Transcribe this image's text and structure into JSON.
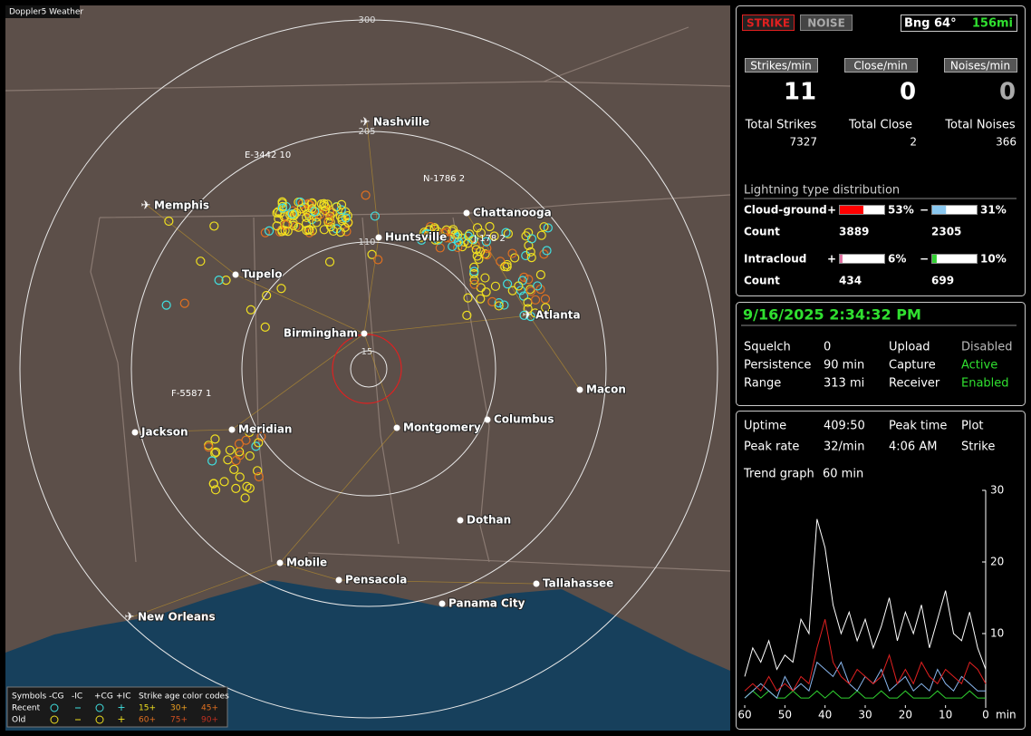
{
  "map": {
    "title": "Doppler5 Weather",
    "range_labels": [
      "300",
      "205",
      "110",
      "15"
    ],
    "cities": [
      "Nashville",
      "Memphis",
      "Chattanooga",
      "Huntsville",
      "Tupelo",
      "Birmingham",
      "Atlanta",
      "Macon",
      "Jackson",
      "Meridian",
      "Montgomery",
      "Columbus",
      "Dothan",
      "Mobile",
      "Pensacola",
      "Panama City",
      "Tallahassee",
      "New Orleans"
    ],
    "strike_labels": [
      "E-3442 10",
      "N-1786 2",
      "J-178 2",
      "F-5587 1"
    ],
    "legend": {
      "symbols": "Symbols",
      "types": [
        "-CG",
        "-IC",
        "+CG",
        "+IC"
      ],
      "age_title": "Strike age color codes",
      "rows": [
        {
          "name": "Recent",
          "ages": [
            "15+",
            "30+",
            "45+"
          ]
        },
        {
          "name": "Old",
          "ages": [
            "60+",
            "75+",
            "90+"
          ]
        }
      ]
    }
  },
  "stats": {
    "modes": [
      "STRIKE",
      "NOISE"
    ],
    "bearing": "Bng 64°",
    "distance": "156mi",
    "rates": [
      {
        "header": "Strikes/min",
        "value": "11",
        "total_label": "Total Strikes",
        "total": "7327"
      },
      {
        "header": "Close/min",
        "value": "0",
        "total_label": "Total Close",
        "total": "2"
      },
      {
        "header": "Noises/min",
        "value": "0",
        "total_label": "Total Noises",
        "total": "366"
      }
    ],
    "distribution_title": "Lightning type distribution",
    "count_label": "Count",
    "types": [
      {
        "name": "Cloud-ground",
        "pos": {
          "sign": "+",
          "value": 53,
          "label": "53%",
          "count": "3889"
        },
        "neg": {
          "sign": "−",
          "value": 31,
          "label": "31%",
          "count": "2305"
        }
      },
      {
        "name": "Intracloud",
        "pos": {
          "sign": "+",
          "value": 6,
          "label": "6%",
          "count": "434"
        },
        "neg": {
          "sign": "−",
          "value": 10,
          "label": "10%",
          "count": "699"
        }
      }
    ]
  },
  "status": {
    "datetime": "9/16/2025 2:34:32 PM",
    "rows": [
      [
        "Squelch",
        "0",
        "Upload",
        "Disabled"
      ],
      [
        "Persistence",
        "90 min",
        "Capture",
        "Active"
      ],
      [
        "Range",
        "313 mi",
        "Receiver",
        "Enabled"
      ]
    ]
  },
  "info": {
    "rows": [
      [
        "Uptime",
        "409:50",
        "Peak time",
        "Plot"
      ],
      [
        "Peak rate",
        "32/min",
        "4:06 AM",
        "Strike"
      ]
    ],
    "trend_label": "Trend graph",
    "trend_span": "60 min"
  },
  "trend": {
    "type": "line",
    "x": [
      60,
      58,
      56,
      54,
      52,
      50,
      48,
      46,
      44,
      42,
      40,
      38,
      36,
      34,
      32,
      30,
      28,
      26,
      24,
      22,
      20,
      18,
      16,
      14,
      12,
      10,
      8,
      6,
      4,
      2,
      0
    ],
    "xlim": [
      60,
      0
    ],
    "xticks": [
      60,
      50,
      40,
      30,
      20,
      10,
      0
    ],
    "x_label": "min",
    "ylim": [
      0,
      30
    ],
    "yticks": [
      10,
      20,
      30
    ],
    "series": [
      {
        "color": "#ffffff",
        "values": [
          4,
          8,
          6,
          9,
          5,
          7,
          6,
          12,
          10,
          26,
          22,
          14,
          10,
          13,
          9,
          12,
          8,
          11,
          15,
          9,
          13,
          10,
          14,
          8,
          12,
          16,
          10,
          9,
          13,
          8,
          5
        ]
      },
      {
        "color": "#e02020",
        "values": [
          2,
          3,
          2,
          4,
          2,
          3,
          2,
          4,
          3,
          8,
          12,
          6,
          4,
          3,
          5,
          4,
          3,
          4,
          7,
          3,
          5,
          3,
          6,
          4,
          3,
          5,
          4,
          3,
          6,
          5,
          3
        ]
      },
      {
        "color": "#8ab8f0",
        "values": [
          1,
          2,
          3,
          2,
          1,
          4,
          2,
          3,
          2,
          6,
          5,
          4,
          6,
          3,
          2,
          4,
          3,
          5,
          2,
          3,
          4,
          2,
          3,
          2,
          5,
          3,
          2,
          4,
          3,
          2,
          2
        ]
      },
      {
        "color": "#30d030",
        "values": [
          1,
          2,
          1,
          2,
          1,
          1,
          2,
          1,
          1,
          2,
          1,
          2,
          1,
          1,
          2,
          1,
          1,
          2,
          1,
          1,
          2,
          1,
          1,
          1,
          2,
          1,
          1,
          1,
          2,
          1,
          1
        ]
      }
    ]
  }
}
